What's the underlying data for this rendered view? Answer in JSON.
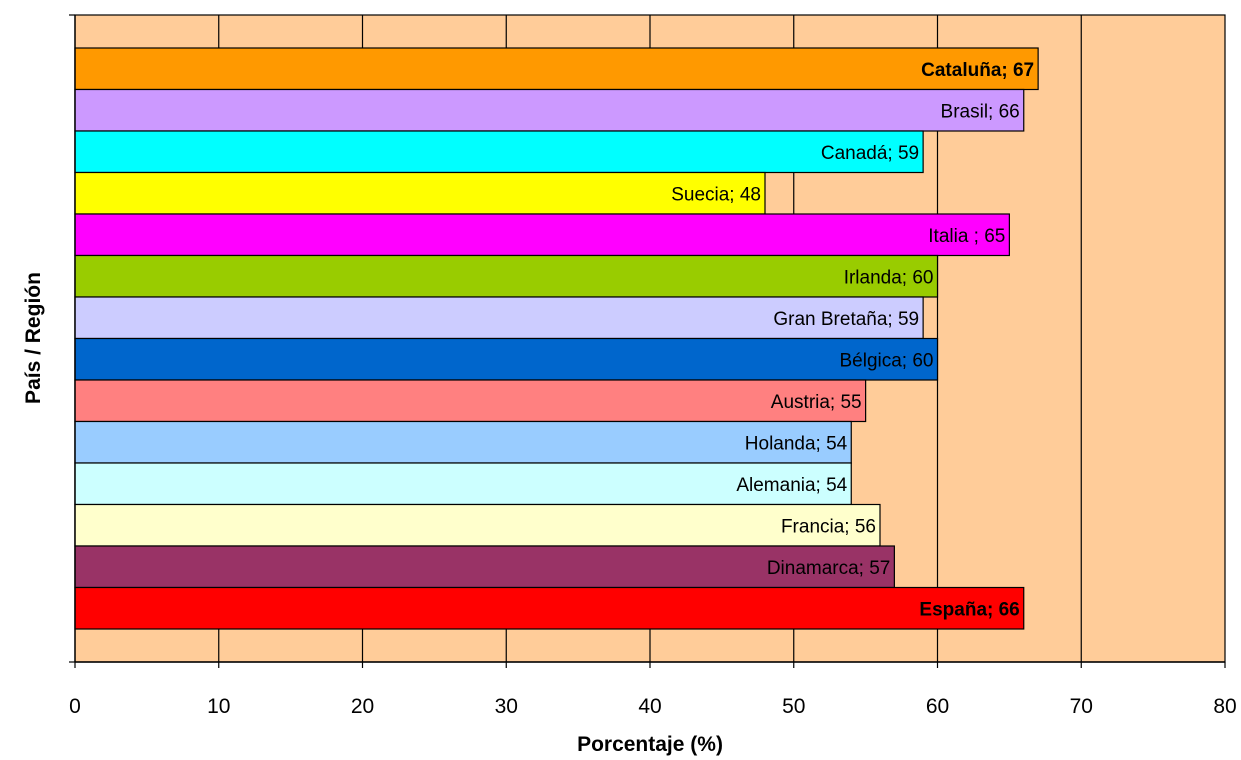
{
  "chart_data": {
    "type": "bar",
    "orientation": "horizontal",
    "xlabel": "Porcentaje (%)",
    "ylabel": "País / Región",
    "xlim": [
      0,
      80
    ],
    "x_ticks": [
      "0",
      "10",
      "20",
      "30",
      "40",
      "50",
      "60",
      "70",
      "80"
    ],
    "grid": "vertical",
    "plot_background": "#ffcc99",
    "bars": [
      {
        "label": "Cataluña; 67",
        "value": 67,
        "color": "#ff9900",
        "bold": true
      },
      {
        "label": "Brasil; 66",
        "value": 66,
        "color": "#cc99ff",
        "bold": false
      },
      {
        "label": "Canadá; 59",
        "value": 59,
        "color": "#00ffff",
        "bold": false
      },
      {
        "label": "Suecia; 48",
        "value": 48,
        "color": "#ffff00",
        "bold": false
      },
      {
        "label": "Italia ; 65",
        "value": 65,
        "color": "#ff00ff",
        "bold": false
      },
      {
        "label": "Irlanda; 60",
        "value": 60,
        "color": "#99cc00",
        "bold": false
      },
      {
        "label": "Gran Bretaña; 59",
        "value": 59,
        "color": "#ccccff",
        "bold": false
      },
      {
        "label": "Bélgica; 60",
        "value": 60,
        "color": "#0066cc",
        "bold": false
      },
      {
        "label": "Austria; 55",
        "value": 55,
        "color": "#ff8080",
        "bold": false
      },
      {
        "label": "Holanda; 54",
        "value": 54,
        "color": "#99ccff",
        "bold": false
      },
      {
        "label": "Alemania;  54",
        "value": 54,
        "color": "#ccffff",
        "bold": false
      },
      {
        "label": "Francia; 56",
        "value": 56,
        "color": "#ffffcc",
        "bold": false
      },
      {
        "label": "Dinamarca;  57",
        "value": 57,
        "color": "#993366",
        "bold": false
      },
      {
        "label": "España; 66",
        "value": 66,
        "color": "#ff0000",
        "bold": true
      }
    ]
  }
}
